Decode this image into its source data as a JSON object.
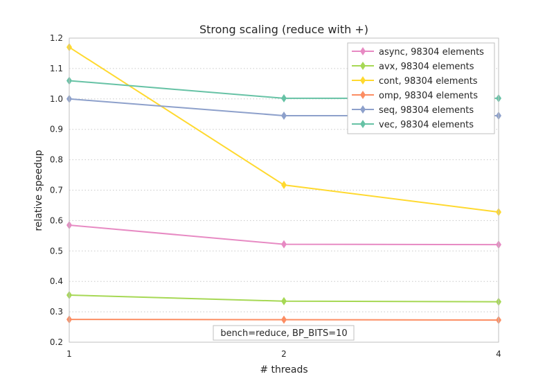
{
  "chart_data": {
    "type": "line",
    "title": "Strong scaling (reduce with +)",
    "xlabel": "# threads",
    "ylabel": "relative speedup",
    "x": [
      1,
      2,
      4
    ],
    "x_ticks": [
      "1",
      "2",
      "4"
    ],
    "x_scale": "log2",
    "xlim": [
      1,
      4
    ],
    "ylim": [
      0.2,
      1.2
    ],
    "y_ticks": [
      "0.2",
      "0.3",
      "0.4",
      "0.5",
      "0.6",
      "0.7",
      "0.8",
      "0.9",
      "1.0",
      "1.1",
      "1.2"
    ],
    "grid": true,
    "grid_axis": "y",
    "legend_position": "top-right",
    "annotation": "bench=reduce, BP_BITS=10",
    "series": [
      {
        "name": "async, 98304 elements",
        "color": "#e78ac3",
        "values": [
          0.585,
          0.522,
          0.521
        ]
      },
      {
        "name": "avx, 98304 elements",
        "color": "#a6d854",
        "values": [
          0.355,
          0.335,
          0.333
        ]
      },
      {
        "name": "cont, 98304 elements",
        "color": "#ffd92f",
        "values": [
          1.17,
          0.717,
          0.628
        ]
      },
      {
        "name": "omp, 98304 elements",
        "color": "#fc8d62",
        "values": [
          0.275,
          0.274,
          0.273
        ]
      },
      {
        "name": "seq, 98304 elements",
        "color": "#8da0cb",
        "values": [
          1.0,
          0.945,
          0.945
        ]
      },
      {
        "name": "vec, 98304 elements",
        "color": "#66c2a5",
        "values": [
          1.06,
          1.002,
          1.002
        ]
      }
    ]
  }
}
